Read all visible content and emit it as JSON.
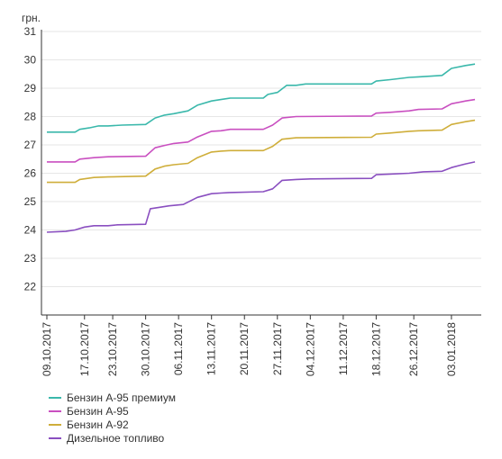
{
  "chart_data": {
    "type": "line",
    "ylabel": "грн.",
    "ylim": [
      21,
      31
    ],
    "yticks": [
      22,
      23,
      24,
      25,
      26,
      27,
      28,
      29,
      30,
      31
    ],
    "xlim": [
      "2017-10-09",
      "2018-01-08"
    ],
    "xticks": [
      "09.10.2017",
      "17.10.2017",
      "23.10.2017",
      "30.10.2017",
      "06.11.2017",
      "13.11.2017",
      "20.11.2017",
      "27.11.2017",
      "04.12.2017",
      "11.12.2017",
      "18.12.2017",
      "26.12.2017",
      "03.01.2018"
    ],
    "legend_position": "bottom-left",
    "grid": "horizontal",
    "series": [
      {
        "name": "Бензин А-95 премиум",
        "color": "#3ab8ab",
        "points": [
          [
            "2017-10-09",
            27.45
          ],
          [
            "2017-10-12",
            27.45
          ],
          [
            "2017-10-15",
            27.45
          ],
          [
            "2017-10-16",
            27.55
          ],
          [
            "2017-10-18",
            27.6
          ],
          [
            "2017-10-20",
            27.67
          ],
          [
            "2017-10-22",
            27.67
          ],
          [
            "2017-10-25",
            27.7
          ],
          [
            "2017-10-30",
            27.72
          ],
          [
            "2017-11-01",
            27.95
          ],
          [
            "2017-11-03",
            28.05
          ],
          [
            "2017-11-05",
            28.1
          ],
          [
            "2017-11-08",
            28.2
          ],
          [
            "2017-11-10",
            28.4
          ],
          [
            "2017-11-13",
            28.55
          ],
          [
            "2017-11-15",
            28.6
          ],
          [
            "2017-11-17",
            28.65
          ],
          [
            "2017-11-24",
            28.65
          ],
          [
            "2017-11-25",
            28.78
          ],
          [
            "2017-11-27",
            28.85
          ],
          [
            "2017-11-29",
            29.1
          ],
          [
            "2017-12-01",
            29.1
          ],
          [
            "2017-12-03",
            29.15
          ],
          [
            "2017-12-17",
            29.15
          ],
          [
            "2017-12-18",
            29.25
          ],
          [
            "2017-12-21",
            29.3
          ],
          [
            "2017-12-25",
            29.38
          ],
          [
            "2017-12-27",
            29.4
          ],
          [
            "2018-01-01",
            29.45
          ],
          [
            "2018-01-03",
            29.7
          ],
          [
            "2018-01-06",
            29.8
          ],
          [
            "2018-01-08",
            29.85
          ]
        ]
      },
      {
        "name": "Бензин А-95",
        "color": "#c94fc0",
        "points": [
          [
            "2017-10-09",
            26.4
          ],
          [
            "2017-10-15",
            26.4
          ],
          [
            "2017-10-16",
            26.5
          ],
          [
            "2017-10-19",
            26.55
          ],
          [
            "2017-10-22",
            26.58
          ],
          [
            "2017-10-30",
            26.6
          ],
          [
            "2017-11-01",
            26.9
          ],
          [
            "2017-11-03",
            26.98
          ],
          [
            "2017-11-05",
            27.05
          ],
          [
            "2017-11-08",
            27.1
          ],
          [
            "2017-11-10",
            27.28
          ],
          [
            "2017-11-13",
            27.48
          ],
          [
            "2017-11-15",
            27.5
          ],
          [
            "2017-11-17",
            27.55
          ],
          [
            "2017-11-24",
            27.55
          ],
          [
            "2017-11-26",
            27.7
          ],
          [
            "2017-11-28",
            27.95
          ],
          [
            "2017-12-01",
            28.0
          ],
          [
            "2017-12-17",
            28.02
          ],
          [
            "2017-12-18",
            28.12
          ],
          [
            "2017-12-21",
            28.15
          ],
          [
            "2017-12-25",
            28.2
          ],
          [
            "2017-12-27",
            28.25
          ],
          [
            "2018-01-01",
            28.27
          ],
          [
            "2018-01-03",
            28.45
          ],
          [
            "2018-01-06",
            28.55
          ],
          [
            "2018-01-08",
            28.6
          ]
        ]
      },
      {
        "name": "Бензин А-92",
        "color": "#cfae3a",
        "points": [
          [
            "2017-10-09",
            25.68
          ],
          [
            "2017-10-15",
            25.68
          ],
          [
            "2017-10-16",
            25.78
          ],
          [
            "2017-10-19",
            25.85
          ],
          [
            "2017-10-22",
            25.87
          ],
          [
            "2017-10-30",
            25.9
          ],
          [
            "2017-11-01",
            26.15
          ],
          [
            "2017-11-03",
            26.25
          ],
          [
            "2017-11-05",
            26.3
          ],
          [
            "2017-11-08",
            26.35
          ],
          [
            "2017-11-10",
            26.55
          ],
          [
            "2017-11-13",
            26.75
          ],
          [
            "2017-11-15",
            26.78
          ],
          [
            "2017-11-17",
            26.8
          ],
          [
            "2017-11-24",
            26.8
          ],
          [
            "2017-11-26",
            26.95
          ],
          [
            "2017-11-28",
            27.2
          ],
          [
            "2017-12-01",
            27.25
          ],
          [
            "2017-12-17",
            27.27
          ],
          [
            "2017-12-18",
            27.38
          ],
          [
            "2017-12-21",
            27.42
          ],
          [
            "2017-12-25",
            27.48
          ],
          [
            "2017-12-27",
            27.5
          ],
          [
            "2018-01-01",
            27.52
          ],
          [
            "2018-01-03",
            27.72
          ],
          [
            "2018-01-06",
            27.82
          ],
          [
            "2018-01-08",
            27.87
          ]
        ]
      },
      {
        "name": "Дизельное топливо",
        "color": "#8a4fc0",
        "points": [
          [
            "2017-10-09",
            23.92
          ],
          [
            "2017-10-13",
            23.95
          ],
          [
            "2017-10-15",
            24.0
          ],
          [
            "2017-10-17",
            24.1
          ],
          [
            "2017-10-19",
            24.15
          ],
          [
            "2017-10-22",
            24.15
          ],
          [
            "2017-10-24",
            24.18
          ],
          [
            "2017-10-30",
            24.2
          ],
          [
            "2017-10-31",
            24.75
          ],
          [
            "2017-11-02",
            24.8
          ],
          [
            "2017-11-04",
            24.85
          ],
          [
            "2017-11-07",
            24.9
          ],
          [
            "2017-11-10",
            25.15
          ],
          [
            "2017-11-13",
            25.28
          ],
          [
            "2017-11-15",
            25.3
          ],
          [
            "2017-11-17",
            25.32
          ],
          [
            "2017-11-24",
            25.35
          ],
          [
            "2017-11-26",
            25.45
          ],
          [
            "2017-11-28",
            25.75
          ],
          [
            "2017-12-01",
            25.78
          ],
          [
            "2017-12-04",
            25.8
          ],
          [
            "2017-12-17",
            25.82
          ],
          [
            "2017-12-18",
            25.95
          ],
          [
            "2017-12-21",
            25.97
          ],
          [
            "2017-12-25",
            26.0
          ],
          [
            "2017-12-28",
            26.05
          ],
          [
            "2018-01-01",
            26.07
          ],
          [
            "2018-01-03",
            26.2
          ],
          [
            "2018-01-06",
            26.33
          ],
          [
            "2018-01-08",
            26.4
          ]
        ]
      }
    ]
  }
}
